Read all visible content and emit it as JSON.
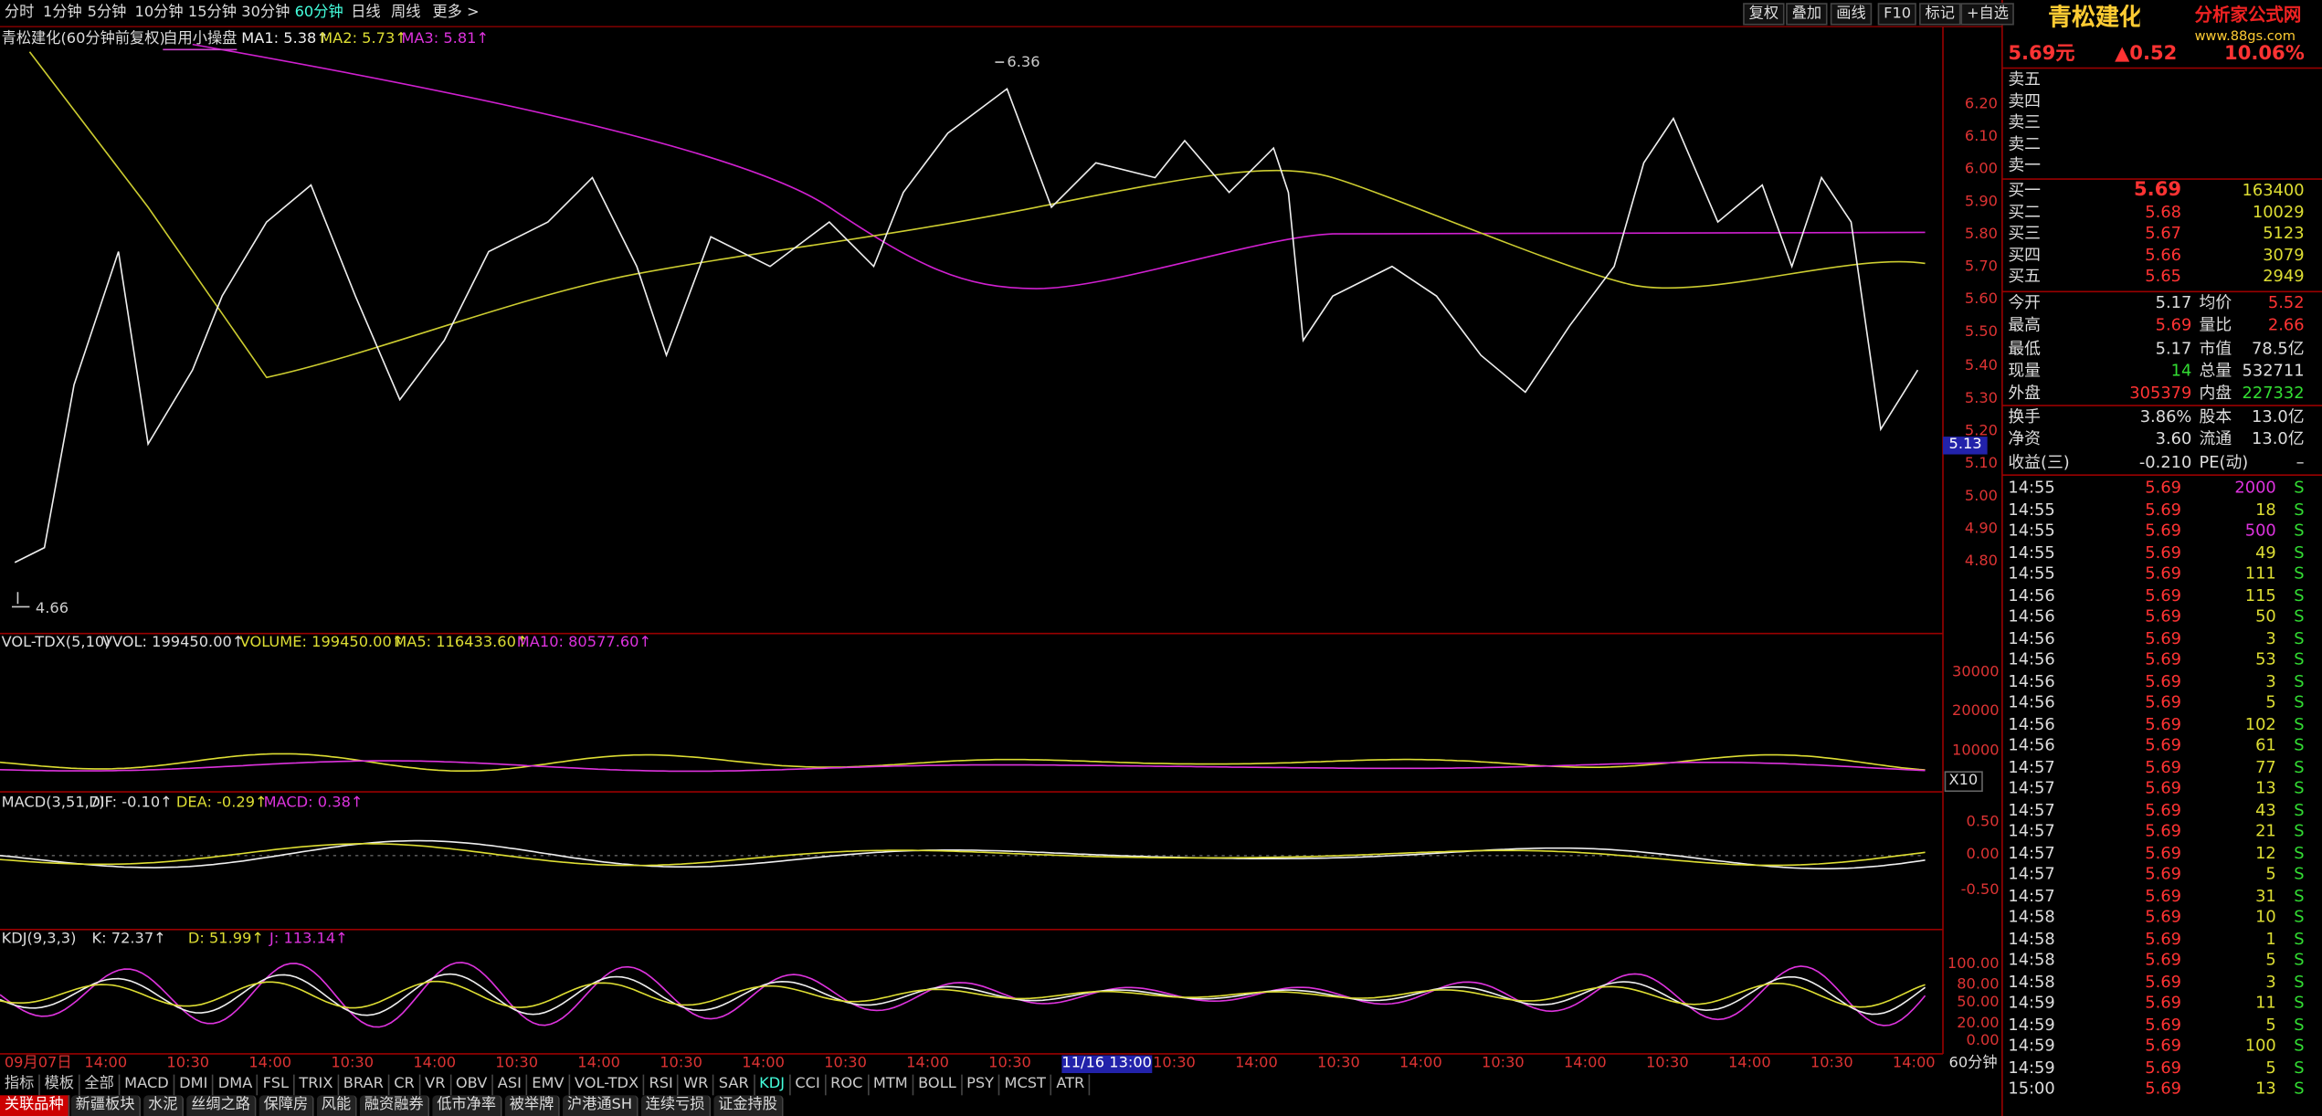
{
  "menu": {
    "periods": [
      "分时",
      "1分钟",
      "5分钟",
      "10分钟",
      "15分钟",
      "30分钟",
      "60分钟",
      "日线",
      "周线",
      "更多 >"
    ],
    "tools": [
      "复权",
      "叠加",
      "画线",
      "F10",
      "标记",
      "+自选"
    ]
  },
  "chart": {
    "title": "青松建化(60分钟前复权)",
    "template": "自用小操盘",
    "ma": [
      "MA1: 5.38↑",
      "MA2: 5.73↑",
      "MA3: 5.81↑"
    ],
    "price_axis": [
      "6.20",
      "6.10",
      "6.00",
      "5.90",
      "5.80",
      "5.70",
      "5.60",
      "5.50",
      "5.40",
      "5.30",
      "5.20",
      "5.10",
      "5.00",
      "4.90",
      "4.80"
    ],
    "current": "5.13",
    "high": "6.36",
    "low": "4.66"
  },
  "volume": {
    "header": [
      "VOL-TDX(5,10)",
      "VVOL: 199450.00↑",
      "VOLUME: 199450.00↑",
      "MA5: 116433.60↑",
      "MA10: 80577.60↑"
    ],
    "axis": [
      "30000",
      "20000",
      "10000"
    ],
    "unit": "X10"
  },
  "macd": {
    "header": [
      "MACD(3,51,7)",
      "DIF: -0.10↑",
      "DEA: -0.29↑",
      "MACD: 0.38↑"
    ],
    "axis": [
      "0.50",
      "0.00",
      "-0.50"
    ]
  },
  "kdj": {
    "header": [
      "KDJ(9,3,3)",
      "K: 72.37↑",
      "D: 51.99↑",
      "J: 113.14↑"
    ],
    "axis": [
      "100.00",
      "80.00",
      "50.00",
      "20.00",
      "0.00"
    ]
  },
  "time_axis": {
    "labels": [
      "09月07日",
      "14:00",
      "10:30",
      "14:00",
      "10:30",
      "14:00",
      "10:30",
      "14:00",
      "10:30",
      "14:00",
      "10:30",
      "14:00",
      "10:30",
      "11/16 13:00",
      "10:30",
      "14:00",
      "10:30",
      "14:00",
      "10:30",
      "14:00",
      "10:30",
      "14:00",
      "10:30",
      "14:00"
    ],
    "period": "60分钟"
  },
  "indicator_tabs": [
    "指标",
    "模板",
    "全部",
    "MACD",
    "DMI",
    "DMA",
    "FSL",
    "TRIX",
    "BRAR",
    "CR",
    "VR",
    "OBV",
    "ASI",
    "EMV",
    "VOL-TDX",
    "RSI",
    "WR",
    "SAR",
    "KDJ",
    "CCI",
    "ROC",
    "MTM",
    "BOLL",
    "PSY",
    "MCST",
    "ATR"
  ],
  "related_tabs": [
    "关联品种",
    "新疆板块",
    "水泥",
    "丝绸之路",
    "保障房",
    "风能",
    "融资融券",
    "低市净率",
    "被举牌",
    "沪港通SH",
    "连续亏损",
    "证金持股"
  ],
  "quote": {
    "name": "青松建化",
    "logo": "分析家公式网",
    "url": "www.88gs.com",
    "price": "5.69元",
    "change": "▲0.52",
    "pct": "10.06%",
    "asks": [
      "卖五",
      "卖四",
      "卖三",
      "卖二",
      "卖一"
    ],
    "bids": [
      {
        "label": "买一",
        "price": "5.69",
        "volume": "163400"
      },
      {
        "label": "买二",
        "price": "5.68",
        "volume": "10029"
      },
      {
        "label": "买三",
        "price": "5.67",
        "volume": "5123"
      },
      {
        "label": "买四",
        "price": "5.66",
        "volume": "3079"
      },
      {
        "label": "买五",
        "price": "5.65",
        "volume": "2949"
      }
    ],
    "stats": [
      [
        "今开",
        "5.17",
        "均价",
        "5.52"
      ],
      [
        "最高",
        "5.69",
        "量比",
        "2.66"
      ],
      [
        "最低",
        "5.17",
        "市值",
        "78.5亿"
      ],
      [
        "现量",
        "14",
        "总量",
        "532711"
      ],
      [
        "外盘",
        "305379",
        "内盘",
        "227332"
      ],
      [
        "换手",
        "3.86%",
        "股本",
        "13.0亿"
      ],
      [
        "净资",
        "3.60",
        "流通",
        "13.0亿"
      ],
      [
        "收益(三)",
        "-0.210",
        "PE(动)",
        "–"
      ]
    ],
    "ticks": [
      [
        "14:55",
        "5.69",
        "2000",
        "S"
      ],
      [
        "14:55",
        "5.69",
        "18",
        "S"
      ],
      [
        "14:55",
        "5.69",
        "500",
        "S"
      ],
      [
        "14:55",
        "5.69",
        "49",
        "S"
      ],
      [
        "14:55",
        "5.69",
        "111",
        "S"
      ],
      [
        "14:56",
        "5.69",
        "115",
        "S"
      ],
      [
        "14:56",
        "5.69",
        "50",
        "S"
      ],
      [
        "14:56",
        "5.69",
        "3",
        "S"
      ],
      [
        "14:56",
        "5.69",
        "53",
        "S"
      ],
      [
        "14:56",
        "5.69",
        "3",
        "S"
      ],
      [
        "14:56",
        "5.69",
        "5",
        "S"
      ],
      [
        "14:56",
        "5.69",
        "102",
        "S"
      ],
      [
        "14:56",
        "5.69",
        "61",
        "S"
      ],
      [
        "14:57",
        "5.69",
        "77",
        "S"
      ],
      [
        "14:57",
        "5.69",
        "13",
        "S"
      ],
      [
        "14:57",
        "5.69",
        "43",
        "S"
      ],
      [
        "14:57",
        "5.69",
        "21",
        "S"
      ],
      [
        "14:57",
        "5.69",
        "12",
        "S"
      ],
      [
        "14:57",
        "5.69",
        "5",
        "S"
      ],
      [
        "14:57",
        "5.69",
        "31",
        "S"
      ],
      [
        "14:58",
        "5.69",
        "10",
        "S"
      ],
      [
        "14:58",
        "5.69",
        "1",
        "S"
      ],
      [
        "14:58",
        "5.69",
        "5",
        "S"
      ],
      [
        "14:58",
        "5.69",
        "3",
        "S"
      ],
      [
        "14:59",
        "5.69",
        "11",
        "S"
      ],
      [
        "14:59",
        "5.69",
        "5",
        "S"
      ],
      [
        "14:59",
        "5.69",
        "100",
        "S"
      ],
      [
        "14:59",
        "5.69",
        "5",
        "S"
      ],
      [
        "15:00",
        "5.69",
        "13",
        "S"
      ]
    ]
  }
}
